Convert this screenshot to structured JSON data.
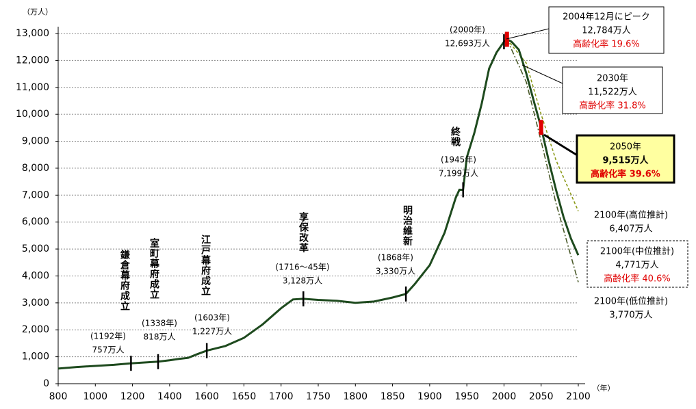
{
  "chart_data": {
    "type": "line",
    "y_unit": "（万人）",
    "x_unit": "（年）",
    "xlim": [
      800,
      2100
    ],
    "xticks": [
      800,
      1000,
      1200,
      1400,
      1600,
      1650,
      1700,
      1750,
      1800,
      1850,
      1900,
      1950,
      2000,
      2050,
      2100
    ],
    "ylim": [
      0,
      13000
    ],
    "yticks": [
      0,
      {
        "value": 1000,
        "label": "1,000"
      },
      {
        "value": 2000,
        "label": "2,000"
      },
      {
        "value": 3000,
        "label": "3,000"
      },
      {
        "value": 4000,
        "label": "4,000"
      },
      {
        "value": 5000,
        "label": "5,000"
      },
      {
        "value": 6000,
        "label": "6,000"
      },
      {
        "value": 7000,
        "label": "7,000"
      },
      {
        "value": 8000,
        "label": "8,000"
      },
      {
        "value": 9000,
        "label": "9,000"
      },
      {
        "value": 10000,
        "label": "10,000"
      },
      {
        "value": 11000,
        "label": "11,000"
      },
      {
        "value": 12000,
        "label": "12,000"
      },
      {
        "value": 13000,
        "label": "13,000"
      }
    ],
    "grid": true,
    "series": [
      {
        "color": "#1e4a1e",
        "style": "solid",
        "x": [
          800,
          900,
          1000,
          1100,
          1192,
          1250,
          1338,
          1400,
          1450,
          1500,
          1550,
          1600,
          1625,
          1650,
          1675,
          1700,
          1716,
          1730,
          1750,
          1775,
          1800,
          1825,
          1850,
          1868,
          1880,
          1900,
          1920,
          1935,
          1940,
          1945,
          1950,
          1960,
          1970,
          1980,
          1990,
          2000,
          2004,
          2010,
          2020,
          2030,
          2040,
          2050,
          2060,
          2070,
          2080,
          2090,
          2100
        ],
        "values": [
          560,
          620,
          660,
          700,
          757,
          780,
          818,
          870,
          920,
          960,
          1100,
          1227,
          1400,
          1700,
          2200,
          2800,
          3128,
          3150,
          3110,
          3080,
          3000,
          3050,
          3200,
          3330,
          3700,
          4400,
          5600,
          6900,
          7200,
          7199,
          8400,
          9300,
          10400,
          11700,
          12300,
          12693,
          12784,
          12700,
          12400,
          11522,
          10500,
          9515,
          8300,
          7200,
          6200,
          5400,
          4771
        ]
      },
      {
        "color": "#8c9a1a",
        "style": "dash",
        "x": [
          2004,
          2030,
          2050,
          2070,
          2100
        ],
        "values": [
          12784,
          11900,
          10000,
          8300,
          6407
        ]
      },
      {
        "color": "#4a5a2a",
        "style": "dashdot",
        "x": [
          2004,
          2030,
          2050,
          2070,
          2100
        ],
        "values": [
          12784,
          11200,
          9000,
          6700,
          3770
        ]
      }
    ],
    "events": [
      "鎌倉幕府成立",
      "室町幕府成立",
      "江戸幕府成立",
      "享保改革",
      "明治維新",
      "終戦"
    ],
    "point_labels": [
      [
        "(1192年)",
        "757万人"
      ],
      [
        "(1338年)",
        "818万人"
      ],
      [
        "(1603年)",
        "1,227万人"
      ],
      [
        "(1716～45年)",
        "3,128万人"
      ],
      [
        "(1868年)",
        "3,330万人"
      ],
      [
        "(1945年)",
        "7,199万人"
      ],
      [
        "(2000年)",
        "12,693万人"
      ]
    ],
    "callouts": [
      [
        "2004年12月にピーク",
        "12,784万人",
        "高齢化率 19.6%"
      ],
      [
        "2030年",
        "11,522万人",
        "高齢化率 31.8%"
      ],
      [
        "2050年",
        "9,515万人",
        "高齢化率 39.6%"
      ],
      [
        "2100年(高位推計)",
        "6,407万人"
      ],
      [
        "2100年(中位推計)",
        "4,771万人",
        "高齢化率 40.6%"
      ],
      [
        "2100年(低位推計)",
        "3,770万人"
      ]
    ]
  }
}
